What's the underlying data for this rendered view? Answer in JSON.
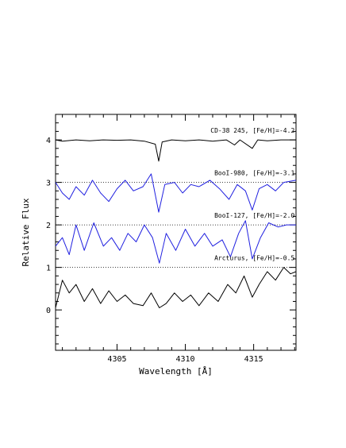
{
  "chart_data": {
    "type": "line",
    "title": "",
    "xlabel": "Wavelength [Å]",
    "ylabel": "Relative Flux",
    "xlim": [
      4300.5,
      4318.1
    ],
    "ylim": [
      -0.95,
      4.6
    ],
    "x_ticks": [
      {
        "value": 4305,
        "label": "4305"
      },
      {
        "value": 4310,
        "label": "4310"
      },
      {
        "value": 4315,
        "label": "4315"
      }
    ],
    "y_ticks": [
      {
        "value": 0,
        "label": "0"
      },
      {
        "value": 1,
        "label": "1"
      },
      {
        "value": 2,
        "label": "2"
      },
      {
        "value": 3,
        "label": "3"
      },
      {
        "value": 4,
        "label": "4"
      }
    ],
    "grid": false,
    "reference_lines": [
      1,
      2,
      3
    ],
    "series": [
      {
        "name": "CD-38 245, [Fe/H]=-4.2",
        "color": "#000000",
        "offset": 4,
        "label_at": {
          "x": 4318.0,
          "y": 4.17
        },
        "points": [
          [
            4300.5,
            0.0
          ],
          [
            4301,
            -0.03
          ],
          [
            4302,
            0.0
          ],
          [
            4303,
            -0.02
          ],
          [
            4304,
            0.0
          ],
          [
            4305,
            -0.01
          ],
          [
            4306,
            0.0
          ],
          [
            4307,
            -0.03
          ],
          [
            4307.8,
            -0.1
          ],
          [
            4308.05,
            -0.5
          ],
          [
            4308.3,
            -0.05
          ],
          [
            4309,
            0.0
          ],
          [
            4310,
            -0.02
          ],
          [
            4311,
            0.0
          ],
          [
            4312,
            -0.03
          ],
          [
            4313,
            0.0
          ],
          [
            4313.6,
            -0.12
          ],
          [
            4314,
            0.0
          ],
          [
            4314.9,
            -0.2
          ],
          [
            4315.3,
            0.0
          ],
          [
            4316,
            -0.02
          ],
          [
            4317,
            0.0
          ],
          [
            4318.1,
            0.0
          ]
        ]
      },
      {
        "name": "BooI-980, [Fe/H]=-3.1",
        "color": "#2020e0",
        "offset": 3,
        "label_at": {
          "x": 4318.0,
          "y": 3.17
        },
        "points": [
          [
            4300.5,
            0.0
          ],
          [
            4301,
            -0.25
          ],
          [
            4301.5,
            -0.4
          ],
          [
            4302,
            -0.1
          ],
          [
            4302.6,
            -0.3
          ],
          [
            4303.2,
            0.05
          ],
          [
            4303.8,
            -0.25
          ],
          [
            4304.4,
            -0.45
          ],
          [
            4305,
            -0.15
          ],
          [
            4305.6,
            0.05
          ],
          [
            4306.2,
            -0.2
          ],
          [
            4306.9,
            -0.1
          ],
          [
            4307.5,
            0.2
          ],
          [
            4308.05,
            -0.7
          ],
          [
            4308.5,
            -0.05
          ],
          [
            4309.2,
            0.0
          ],
          [
            4309.8,
            -0.25
          ],
          [
            4310.4,
            -0.05
          ],
          [
            4311,
            -0.1
          ],
          [
            4311.8,
            0.05
          ],
          [
            4312.5,
            -0.15
          ],
          [
            4313.2,
            -0.4
          ],
          [
            4313.8,
            -0.05
          ],
          [
            4314.4,
            -0.2
          ],
          [
            4314.9,
            -0.65
          ],
          [
            4315.4,
            -0.15
          ],
          [
            4316,
            -0.05
          ],
          [
            4316.6,
            -0.2
          ],
          [
            4317.2,
            0.0
          ],
          [
            4318.1,
            0.05
          ]
        ]
      },
      {
        "name": "BooI-127, [Fe/H]=-2.0",
        "color": "#2020e0",
        "offset": 2,
        "label_at": {
          "x": 4318.0,
          "y": 2.17
        },
        "points": [
          [
            4300.5,
            -0.5
          ],
          [
            4301,
            -0.3
          ],
          [
            4301.5,
            -0.7
          ],
          [
            4302,
            0.0
          ],
          [
            4302.6,
            -0.6
          ],
          [
            4303.3,
            0.05
          ],
          [
            4304,
            -0.5
          ],
          [
            4304.6,
            -0.3
          ],
          [
            4305.2,
            -0.6
          ],
          [
            4305.8,
            -0.2
          ],
          [
            4306.4,
            -0.4
          ],
          [
            4307,
            0.0
          ],
          [
            4307.6,
            -0.3
          ],
          [
            4308.1,
            -0.9
          ],
          [
            4308.6,
            -0.2
          ],
          [
            4309.3,
            -0.6
          ],
          [
            4310,
            -0.1
          ],
          [
            4310.7,
            -0.5
          ],
          [
            4311.4,
            -0.2
          ],
          [
            4312,
            -0.5
          ],
          [
            4312.7,
            -0.35
          ],
          [
            4313.3,
            -0.75
          ],
          [
            4313.9,
            -0.2
          ],
          [
            4314.4,
            0.1
          ],
          [
            4314.9,
            -0.8
          ],
          [
            4315.5,
            -0.3
          ],
          [
            4316.1,
            0.05
          ],
          [
            4316.8,
            -0.05
          ],
          [
            4317.4,
            0.0
          ],
          [
            4318.1,
            0.0
          ]
        ]
      },
      {
        "name": "Arcturus, [Fe/H]=-0.5",
        "color": "#000000",
        "offset": 0,
        "label_at": {
          "x": 4318.0,
          "y": 1.17
        },
        "points": [
          [
            4300.5,
            0.05
          ],
          [
            4301,
            0.7
          ],
          [
            4301.5,
            0.4
          ],
          [
            4302,
            0.6
          ],
          [
            4302.6,
            0.2
          ],
          [
            4303.2,
            0.5
          ],
          [
            4303.8,
            0.15
          ],
          [
            4304.4,
            0.45
          ],
          [
            4305,
            0.2
          ],
          [
            4305.6,
            0.35
          ],
          [
            4306.2,
            0.15
          ],
          [
            4306.9,
            0.1
          ],
          [
            4307.5,
            0.4
          ],
          [
            4308.1,
            0.05
          ],
          [
            4308.6,
            0.15
          ],
          [
            4309.2,
            0.4
          ],
          [
            4309.8,
            0.2
          ],
          [
            4310.4,
            0.35
          ],
          [
            4311,
            0.1
          ],
          [
            4311.7,
            0.4
          ],
          [
            4312.4,
            0.2
          ],
          [
            4313.1,
            0.6
          ],
          [
            4313.7,
            0.4
          ],
          [
            4314.3,
            0.8
          ],
          [
            4314.9,
            0.3
          ],
          [
            4315.4,
            0.6
          ],
          [
            4316,
            0.9
          ],
          [
            4316.6,
            0.7
          ],
          [
            4317.2,
            1.0
          ],
          [
            4317.7,
            0.85
          ],
          [
            4318.1,
            0.9
          ]
        ]
      }
    ]
  }
}
